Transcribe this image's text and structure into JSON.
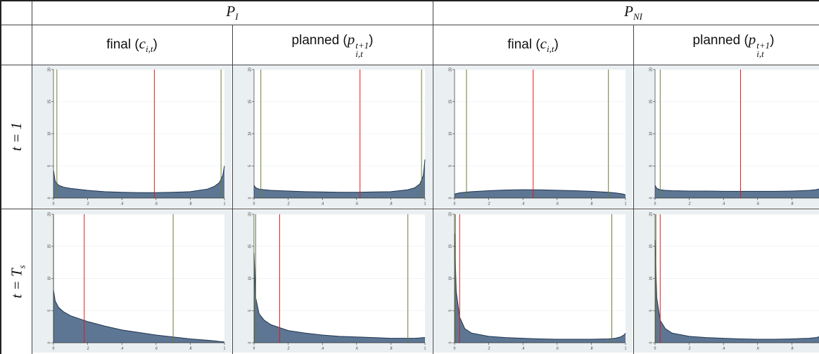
{
  "table": {
    "groups": [
      {
        "symbol": "P",
        "sub": "I"
      },
      {
        "symbol": "P",
        "sub": "NI"
      }
    ],
    "columns": [
      {
        "before": "final (",
        "symbol": "c",
        "sub": "i,t",
        "after": ")"
      },
      {
        "before": "planned (",
        "symbol": "p",
        "sub": "i,t",
        "sup": "t+1",
        "after": ")"
      },
      {
        "before": "final (",
        "symbol": "c",
        "sub": "i,t",
        "after": ")"
      },
      {
        "before": "planned (",
        "symbol": "p",
        "sub": "i,t",
        "sup": "t+1",
        "after": ")"
      }
    ],
    "rows": [
      {
        "label": "t = 1"
      },
      {
        "label": "t = T",
        "sub": "s"
      }
    ],
    "axes": {
      "x": [
        0,
        0.01,
        0.03,
        0.06,
        0.1,
        0.2,
        0.3,
        0.4,
        0.5,
        0.6,
        0.7,
        0.8,
        0.9,
        0.94,
        0.97,
        0.99,
        1
      ],
      "xlim": [
        0,
        1
      ],
      "ylim": [
        0,
        20
      ],
      "xticks": [
        0,
        {
          "value": 0.2,
          "label": ".2"
        },
        {
          "value": 0.4,
          "label": ".4"
        },
        {
          "value": 0.6,
          "label": ".6"
        },
        {
          "value": 0.8,
          "label": ".8"
        },
        1
      ],
      "yticks": [
        0,
        5,
        10,
        15,
        20
      ],
      "fill_color": "#5d7693",
      "line_color": "#1e3552",
      "mean_color": "#e31a1c",
      "bound_color": "#6b7d3a"
    },
    "plots": [
      {
        "density": [
          4.3,
          2.6,
          2.0,
          1.7,
          1.5,
          1.2,
          1.0,
          0.9,
          0.85,
          0.85,
          0.9,
          1.0,
          1.4,
          1.8,
          2.4,
          3.5,
          5.0
        ],
        "red": 0.59,
        "green": [
          0.02,
          0.98
        ]
      },
      {
        "density": [
          2.0,
          1.6,
          1.4,
          1.3,
          1.2,
          1.1,
          1.0,
          0.95,
          0.9,
          0.9,
          0.95,
          1.0,
          1.3,
          1.6,
          2.2,
          3.5,
          6.0
        ],
        "red": 0.62,
        "green": [
          0.04,
          0.98
        ]
      },
      {
        "density": [
          0.6,
          0.7,
          0.8,
          0.9,
          1.0,
          1.15,
          1.25,
          1.3,
          1.28,
          1.22,
          1.15,
          1.05,
          0.9,
          0.8,
          0.7,
          0.6,
          0.5
        ],
        "red": 0.46,
        "green": [
          0.07,
          0.9
        ]
      },
      {
        "density": [
          2.0,
          1.5,
          1.3,
          1.2,
          1.15,
          1.1,
          1.1,
          1.05,
          1.05,
          1.05,
          1.05,
          1.1,
          1.2,
          1.3,
          1.5,
          1.8,
          2.2
        ],
        "red": 0.5,
        "green": [
          0.03,
          0.97
        ]
      },
      {
        "density": [
          8.2,
          6.5,
          5.5,
          4.8,
          4.2,
          3.3,
          2.6,
          2.0,
          1.6,
          1.2,
          0.9,
          0.6,
          0.4,
          0.3,
          0.2,
          0.15,
          0.1
        ],
        "red": 0.18,
        "green": [
          0.0,
          0.7
        ]
      },
      {
        "density": [
          14,
          7,
          4.5,
          3.5,
          2.8,
          1.9,
          1.5,
          1.2,
          1.0,
          0.9,
          0.8,
          0.7,
          0.7,
          0.7,
          0.75,
          0.8,
          0.8
        ],
        "red": 0.15,
        "green": [
          0.01,
          0.9
        ]
      },
      {
        "density": [
          17,
          8,
          4,
          2.2,
          1.5,
          1.0,
          0.8,
          0.7,
          0.6,
          0.55,
          0.55,
          0.55,
          0.6,
          0.7,
          0.9,
          1.2,
          1.5
        ],
        "red": 0.03,
        "green": [
          0.005,
          0.92
        ]
      },
      {
        "density": [
          16,
          7,
          3.5,
          2.2,
          1.5,
          1.0,
          0.8,
          0.7,
          0.6,
          0.55,
          0.55,
          0.6,
          0.7,
          0.8,
          1.0,
          1.5,
          2.2
        ],
        "red": 0.03,
        "green": [
          0.005,
          0.97
        ]
      }
    ]
  }
}
